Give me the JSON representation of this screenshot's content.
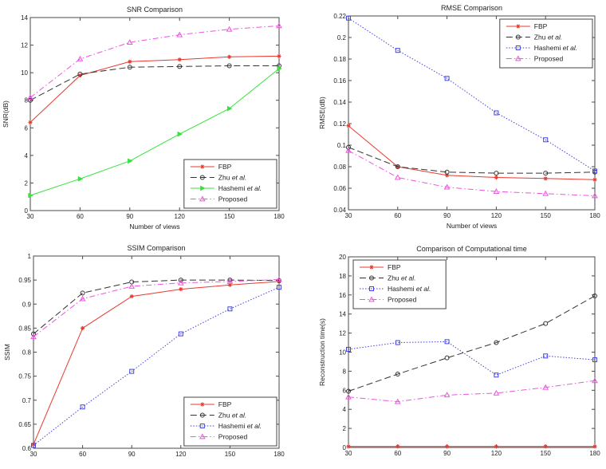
{
  "figure": {
    "background": "#ffffff",
    "axis_color": "#4a4a4a",
    "text_color": "#222222"
  },
  "chart_data": [
    {
      "type": "line",
      "title": "SNR Comparison",
      "xlabel": "Number of views",
      "ylabel": "SNR(dB)",
      "x": [
        30,
        60,
        90,
        120,
        150,
        180
      ],
      "xlim": [
        30,
        180
      ],
      "ylim": [
        0,
        14
      ],
      "ytick_step": 2,
      "grid": false,
      "legend_position": "southeast",
      "series": [
        {
          "name": "FBP",
          "color": "#e8392f",
          "line_style": "solid",
          "marker": "asterisk",
          "values": [
            6.4,
            9.8,
            10.8,
            10.95,
            11.15,
            11.2
          ]
        },
        {
          "name": "Zhu et al.",
          "color": "#333333",
          "line_style": "dashed",
          "marker": "circle-open",
          "values": [
            8.0,
            9.9,
            10.4,
            10.45,
            10.5,
            10.5
          ]
        },
        {
          "name": "Hashemi et al.",
          "color": "#36e23c",
          "line_style": "solid",
          "marker": "triangle-right-filled",
          "values": [
            1.1,
            2.3,
            3.6,
            5.55,
            7.4,
            10.3
          ]
        },
        {
          "name": "Proposed",
          "color": "#ee55e0",
          "line_style": "dashdot",
          "marker": "triangle-up-open",
          "values": [
            8.2,
            11.0,
            12.2,
            12.75,
            13.15,
            13.4
          ]
        }
      ]
    },
    {
      "type": "line",
      "title": "RMSE Comparison",
      "xlabel": "Number of views",
      "ylabel": "RMSE(dB)",
      "x": [
        30,
        60,
        90,
        120,
        150,
        180
      ],
      "xlim": [
        30,
        180
      ],
      "ylim": [
        0.04,
        0.22
      ],
      "ytick_step": 0.02,
      "grid": false,
      "legend_position": "northeast",
      "series": [
        {
          "name": "FBP",
          "color": "#e8392f",
          "line_style": "solid",
          "marker": "asterisk",
          "values": [
            0.118,
            0.08,
            0.072,
            0.07,
            0.069,
            0.068
          ]
        },
        {
          "name": "Zhu et al.",
          "color": "#333333",
          "line_style": "dashed",
          "marker": "circle-open",
          "values": [
            0.098,
            0.08,
            0.075,
            0.074,
            0.074,
            0.075
          ]
        },
        {
          "name": "Hashemi et al.",
          "color": "#4242e0",
          "line_style": "dotted",
          "marker": "square-open",
          "values": [
            0.218,
            0.188,
            0.162,
            0.13,
            0.105,
            0.076
          ]
        },
        {
          "name": "Proposed",
          "color": "#ee55e0",
          "line_style": "dashdot",
          "marker": "triangle-up-open",
          "values": [
            0.095,
            0.07,
            0.061,
            0.057,
            0.055,
            0.053
          ]
        }
      ]
    },
    {
      "type": "line",
      "title": "SSIM Comparison",
      "xlabel": "",
      "ylabel": "SSIM",
      "x": [
        30,
        60,
        90,
        120,
        150,
        180
      ],
      "xlim": [
        30,
        180
      ],
      "ylim": [
        0.6,
        1.0
      ],
      "ytick_step": 0.05,
      "grid": false,
      "legend_position": "southeast",
      "series": [
        {
          "name": "FBP",
          "color": "#e8392f",
          "line_style": "solid",
          "marker": "asterisk",
          "values": [
            0.608,
            0.85,
            0.916,
            0.931,
            0.94,
            0.947
          ]
        },
        {
          "name": "Zhu et al.",
          "color": "#333333",
          "line_style": "dashed",
          "marker": "circle-open",
          "values": [
            0.838,
            0.923,
            0.946,
            0.95,
            0.95,
            0.949
          ]
        },
        {
          "name": "Hashemi et al.",
          "color": "#4242e0",
          "line_style": "dotted",
          "marker": "square-open",
          "values": [
            0.606,
            0.686,
            0.76,
            0.838,
            0.89,
            0.935
          ]
        },
        {
          "name": "Proposed",
          "color": "#ee55e0",
          "line_style": "dashdot",
          "marker": "triangle-up-open",
          "values": [
            0.832,
            0.911,
            0.937,
            0.944,
            0.947,
            0.951
          ]
        }
      ]
    },
    {
      "type": "line",
      "title": "Comparison of Computational time",
      "xlabel": "",
      "ylabel": "Reconstruction time(s)",
      "x": [
        30,
        60,
        90,
        120,
        150,
        180
      ],
      "xlim": [
        30,
        180
      ],
      "ylim": [
        0,
        20
      ],
      "ytick_step": 2,
      "grid": false,
      "legend_position": "northwest",
      "series": [
        {
          "name": "FBP",
          "color": "#e8392f",
          "line_style": "solid",
          "marker": "asterisk",
          "values": [
            0.1,
            0.1,
            0.1,
            0.1,
            0.1,
            0.1
          ]
        },
        {
          "name": "Zhu et al.",
          "color": "#333333",
          "line_style": "dashed",
          "marker": "circle-open",
          "values": [
            5.9,
            7.7,
            9.4,
            11.0,
            13.0,
            15.9
          ]
        },
        {
          "name": "Hashemi et al.",
          "color": "#4242e0",
          "line_style": "dotted",
          "marker": "square-open",
          "values": [
            10.3,
            11.0,
            11.1,
            7.6,
            9.6,
            9.2
          ]
        },
        {
          "name": "Proposed",
          "color": "#ee55e0",
          "line_style": "dashdot",
          "marker": "triangle-up-open",
          "values": [
            5.3,
            4.8,
            5.5,
            5.7,
            6.3,
            7.0
          ]
        }
      ]
    }
  ]
}
